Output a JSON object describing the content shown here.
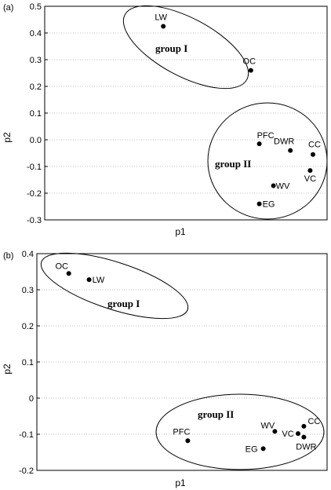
{
  "chart_data": [
    {
      "type": "scatter",
      "panel_label": "(a)",
      "xlabel": "p1",
      "ylabel": "p2",
      "ylim": [
        -0.3,
        0.5
      ],
      "xlim": [
        0,
        1
      ],
      "y_ticks": [
        "0.5",
        "0.4",
        "0.3",
        "0.2",
        "0.1",
        "0.0",
        "-0.1",
        "-0.2",
        "-0.3"
      ],
      "grid": true,
      "points": [
        {
          "label": "LW",
          "x": 0.42,
          "y": 0.425
        },
        {
          "label": "OC",
          "x": 0.73,
          "y": 0.26
        },
        {
          "label": "PFC",
          "x": 0.76,
          "y": -0.015
        },
        {
          "label": "DWR",
          "x": 0.87,
          "y": -0.04
        },
        {
          "label": "CC",
          "x": 0.95,
          "y": -0.055
        },
        {
          "label": "VC",
          "x": 0.94,
          "y": -0.115
        },
        {
          "label": "WV",
          "x": 0.81,
          "y": -0.172
        },
        {
          "label": "EG",
          "x": 0.76,
          "y": -0.24
        }
      ],
      "groups": [
        {
          "label": "group I"
        },
        {
          "label": "group II"
        }
      ]
    },
    {
      "type": "scatter",
      "panel_label": "(b)",
      "xlabel": "p1",
      "ylabel": "p2",
      "ylim": [
        -0.2,
        0.4
      ],
      "xlim": [
        0,
        1
      ],
      "y_ticks": [
        "0.4",
        "0.3",
        "0.2",
        "0.1",
        "0",
        "-0.1",
        "-0.2"
      ],
      "grid": true,
      "points": [
        {
          "label": "OC",
          "x": 0.11,
          "y": 0.345
        },
        {
          "label": "LW",
          "x": 0.18,
          "y": 0.328
        },
        {
          "label": "PFC",
          "x": 0.52,
          "y": -0.118
        },
        {
          "label": "WV",
          "x": 0.82,
          "y": -0.092
        },
        {
          "label": "VC",
          "x": 0.9,
          "y": -0.098
        },
        {
          "label": "CC",
          "x": 0.92,
          "y": -0.078
        },
        {
          "label": "DWR",
          "x": 0.92,
          "y": -0.108
        },
        {
          "label": "EG",
          "x": 0.78,
          "y": -0.14
        }
      ],
      "groups": [
        {
          "label": "group I"
        },
        {
          "label": "group II"
        }
      ]
    }
  ]
}
